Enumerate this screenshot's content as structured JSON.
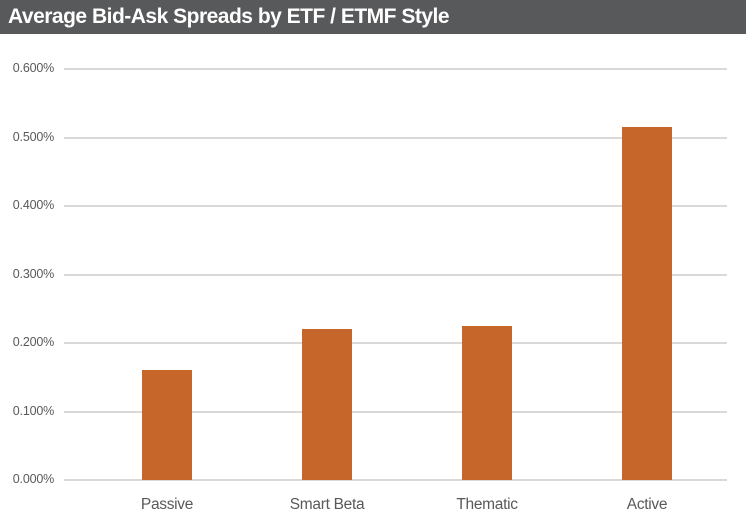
{
  "header": {
    "title": "Average Bid-Ask Spreads by ETF / ETMF Style",
    "background": "#58595B",
    "text_color": "#FFFFFF"
  },
  "chart_data": {
    "type": "bar",
    "title": "Average Bid-Ask Spreads by ETF / ETMF Style",
    "categories": [
      "Passive",
      "Smart Beta",
      "Thematic",
      "Active"
    ],
    "values": [
      0.16,
      0.221,
      0.225,
      0.515
    ],
    "value_unit": "%",
    "xlabel": "",
    "ylabel": "",
    "ylim": [
      0.0,
      0.6
    ],
    "ytick_step": 0.1,
    "ytick_labels": [
      "0.000%",
      "0.100%",
      "0.200%",
      "0.300%",
      "0.400%",
      "0.500%",
      "0.600%"
    ],
    "grid": true,
    "legend": false,
    "bar_color": "#C7662A",
    "gridline_color": "#D9D9D9",
    "axis_label_color": "#595959"
  }
}
